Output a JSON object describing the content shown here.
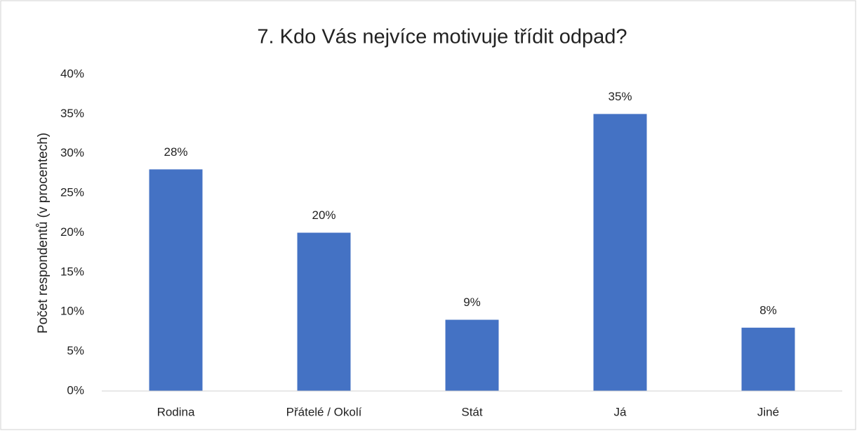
{
  "chart_data": {
    "type": "bar",
    "title": "7. Kdo Vás nejvíce motivuje třídit odpad?",
    "y_label": "Počet respondentů (v procentech)",
    "categories": [
      "Rodina",
      "Přátelé / Okolí",
      "Stát",
      "Já",
      "Jiné"
    ],
    "values": [
      28,
      20,
      9,
      35,
      8
    ],
    "value_labels": [
      "28%",
      "20%",
      "9%",
      "35%",
      "8%"
    ],
    "color": "#4472c4",
    "ylim": [
      0,
      40
    ],
    "yticks": [
      {
        "value": 0,
        "label": "0%"
      },
      {
        "value": 5,
        "label": "5%"
      },
      {
        "value": 10,
        "label": "10%"
      },
      {
        "value": 15,
        "label": "15%"
      },
      {
        "value": 20,
        "label": "20%"
      },
      {
        "value": 25,
        "label": "25%"
      },
      {
        "value": 30,
        "label": "30%"
      },
      {
        "value": 35,
        "label": "35%"
      },
      {
        "value": 40,
        "label": "40%"
      }
    ],
    "grid": false
  }
}
